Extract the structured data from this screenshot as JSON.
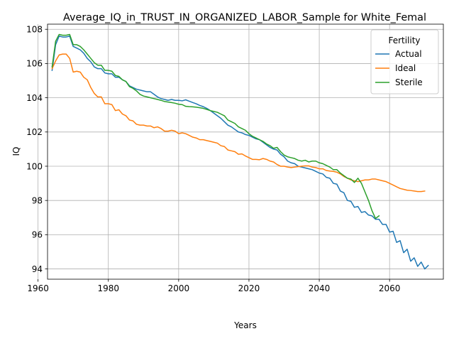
{
  "chart_data": {
    "type": "line",
    "title": "Average_IQ_in_TRUST_IN_ORGANIZED_LABOR_Sample for White_Femal",
    "xlabel": "Years",
    "ylabel": "IQ",
    "xlim": [
      1962.7,
      2075.3
    ],
    "ylim": [
      93.4,
      108.3
    ],
    "x_ticks": [
      1960,
      1980,
      2000,
      2020,
      2040,
      2060
    ],
    "y_ticks": [
      94,
      96,
      98,
      100,
      102,
      104,
      106,
      108
    ],
    "grid": true,
    "legend": {
      "title": "Fertility",
      "position": "top-right"
    },
    "series": [
      {
        "name": "Actual",
        "color": "#1f77b4",
        "points": [
          [
            1964,
            105.6
          ],
          [
            1965,
            107.1
          ],
          [
            1966,
            107.6
          ],
          [
            1967,
            107.55
          ],
          [
            1968,
            107.55
          ],
          [
            1969,
            107.6
          ],
          [
            1970,
            107.0
          ],
          [
            1971,
            106.9
          ],
          [
            1972,
            106.8
          ],
          [
            1973,
            106.6
          ],
          [
            1974,
            106.3
          ],
          [
            1975,
            106.1
          ],
          [
            1976,
            105.8
          ],
          [
            1977,
            105.7
          ],
          [
            1978,
            105.7
          ],
          [
            1979,
            105.45
          ],
          [
            1980,
            105.4
          ],
          [
            1981,
            105.4
          ],
          [
            1982,
            105.2
          ],
          [
            1983,
            105.2
          ],
          [
            1984,
            105.05
          ],
          [
            1985,
            104.95
          ],
          [
            1986,
            104.7
          ],
          [
            1987,
            104.6
          ],
          [
            1988,
            104.5
          ],
          [
            1989,
            104.45
          ],
          [
            1990,
            104.4
          ],
          [
            1991,
            104.35
          ],
          [
            1992,
            104.35
          ],
          [
            1993,
            104.2
          ],
          [
            1994,
            104.05
          ],
          [
            1995,
            103.95
          ],
          [
            1996,
            103.9
          ],
          [
            1997,
            103.85
          ],
          [
            1998,
            103.9
          ],
          [
            1999,
            103.85
          ],
          [
            2000,
            103.85
          ],
          [
            2001,
            103.82
          ],
          [
            2002,
            103.88
          ],
          [
            2003,
            103.8
          ],
          [
            2004,
            103.72
          ],
          [
            2005,
            103.65
          ],
          [
            2006,
            103.55
          ],
          [
            2007,
            103.48
          ],
          [
            2008,
            103.38
          ],
          [
            2009,
            103.25
          ],
          [
            2010,
            103.1
          ],
          [
            2011,
            102.95
          ],
          [
            2012,
            102.8
          ],
          [
            2013,
            102.6
          ],
          [
            2014,
            102.4
          ],
          [
            2015,
            102.3
          ],
          [
            2016,
            102.15
          ],
          [
            2017,
            102.0
          ],
          [
            2018,
            101.95
          ],
          [
            2019,
            101.85
          ],
          [
            2020,
            101.8
          ],
          [
            2021,
            101.7
          ],
          [
            2022,
            101.6
          ],
          [
            2023,
            101.55
          ],
          [
            2024,
            101.4
          ],
          [
            2025,
            101.25
          ],
          [
            2026,
            101.1
          ],
          [
            2027,
            101.0
          ],
          [
            2028,
            100.95
          ],
          [
            2029,
            100.7
          ],
          [
            2030,
            100.55
          ],
          [
            2031,
            100.3
          ],
          [
            2032,
            100.2
          ],
          [
            2033,
            100.15
          ],
          [
            2034,
            100.0
          ],
          [
            2035,
            99.95
          ],
          [
            2036,
            99.9
          ],
          [
            2037,
            99.85
          ],
          [
            2038,
            99.8
          ],
          [
            2039,
            99.7
          ],
          [
            2040,
            99.6
          ],
          [
            2041,
            99.55
          ],
          [
            2042,
            99.35
          ],
          [
            2043,
            99.3
          ],
          [
            2044,
            99.0
          ],
          [
            2045,
            98.95
          ],
          [
            2046,
            98.55
          ],
          [
            2047,
            98.45
          ],
          [
            2048,
            98.0
          ],
          [
            2049,
            97.95
          ],
          [
            2050,
            97.6
          ],
          [
            2051,
            97.65
          ],
          [
            2052,
            97.3
          ],
          [
            2053,
            97.35
          ],
          [
            2054,
            97.15
          ],
          [
            2055,
            97.1
          ],
          [
            2056,
            96.9
          ],
          [
            2057,
            96.9
          ],
          [
            2058,
            96.6
          ],
          [
            2059,
            96.6
          ],
          [
            2060,
            96.15
          ],
          [
            2061,
            96.2
          ],
          [
            2062,
            95.55
          ],
          [
            2063,
            95.65
          ],
          [
            2064,
            94.95
          ],
          [
            2065,
            95.15
          ],
          [
            2066,
            94.45
          ],
          [
            2067,
            94.65
          ],
          [
            2068,
            94.15
          ],
          [
            2069,
            94.4
          ],
          [
            2070,
            94.0
          ],
          [
            2071,
            94.2
          ]
        ]
      },
      {
        "name": "Ideal",
        "color": "#ff7f0e",
        "points": [
          [
            1964,
            105.7
          ],
          [
            1965,
            106.15
          ],
          [
            1966,
            106.5
          ],
          [
            1967,
            106.55
          ],
          [
            1968,
            106.55
          ],
          [
            1969,
            106.3
          ],
          [
            1970,
            105.5
          ],
          [
            1971,
            105.55
          ],
          [
            1972,
            105.5
          ],
          [
            1973,
            105.2
          ],
          [
            1974,
            105.05
          ],
          [
            1975,
            104.6
          ],
          [
            1976,
            104.25
          ],
          [
            1977,
            104.05
          ],
          [
            1978,
            104.05
          ],
          [
            1979,
            103.65
          ],
          [
            1980,
            103.65
          ],
          [
            1981,
            103.6
          ],
          [
            1982,
            103.25
          ],
          [
            1983,
            103.3
          ],
          [
            1984,
            103.05
          ],
          [
            1985,
            102.95
          ],
          [
            1986,
            102.7
          ],
          [
            1987,
            102.65
          ],
          [
            1988,
            102.45
          ],
          [
            1989,
            102.4
          ],
          [
            1990,
            102.4
          ],
          [
            1991,
            102.35
          ],
          [
            1992,
            102.35
          ],
          [
            1993,
            102.25
          ],
          [
            1994,
            102.3
          ],
          [
            1995,
            102.2
          ],
          [
            1996,
            102.05
          ],
          [
            1997,
            102.05
          ],
          [
            1998,
            102.1
          ],
          [
            1999,
            102.05
          ],
          [
            2000,
            101.9
          ],
          [
            2001,
            101.95
          ],
          [
            2002,
            101.9
          ],
          [
            2003,
            101.8
          ],
          [
            2004,
            101.7
          ],
          [
            2005,
            101.65
          ],
          [
            2006,
            101.55
          ],
          [
            2007,
            101.55
          ],
          [
            2008,
            101.5
          ],
          [
            2009,
            101.45
          ],
          [
            2010,
            101.4
          ],
          [
            2011,
            101.35
          ],
          [
            2012,
            101.2
          ],
          [
            2013,
            101.15
          ],
          [
            2014,
            100.95
          ],
          [
            2015,
            100.9
          ],
          [
            2016,
            100.85
          ],
          [
            2017,
            100.7
          ],
          [
            2018,
            100.72
          ],
          [
            2019,
            100.6
          ],
          [
            2020,
            100.5
          ],
          [
            2021,
            100.4
          ],
          [
            2022,
            100.4
          ],
          [
            2023,
            100.38
          ],
          [
            2024,
            100.45
          ],
          [
            2025,
            100.4
          ],
          [
            2026,
            100.3
          ],
          [
            2027,
            100.25
          ],
          [
            2028,
            100.1
          ],
          [
            2029,
            100.0
          ],
          [
            2030,
            100.0
          ],
          [
            2031,
            99.95
          ],
          [
            2032,
            99.92
          ],
          [
            2033,
            99.95
          ],
          [
            2034,
            99.98
          ],
          [
            2035,
            100.0
          ],
          [
            2036,
            100.02
          ],
          [
            2037,
            100.02
          ],
          [
            2038,
            99.95
          ],
          [
            2039,
            99.92
          ],
          [
            2040,
            99.85
          ],
          [
            2041,
            99.85
          ],
          [
            2042,
            99.75
          ],
          [
            2043,
            99.72
          ],
          [
            2044,
            99.7
          ],
          [
            2045,
            99.65
          ],
          [
            2046,
            99.55
          ],
          [
            2047,
            99.4
          ],
          [
            2048,
            99.3
          ],
          [
            2049,
            99.2
          ],
          [
            2050,
            99.15
          ],
          [
            2051,
            99.1
          ],
          [
            2052,
            99.15
          ],
          [
            2053,
            99.2
          ],
          [
            2054,
            99.2
          ],
          [
            2055,
            99.25
          ],
          [
            2056,
            99.25
          ],
          [
            2057,
            99.2
          ],
          [
            2058,
            99.15
          ],
          [
            2059,
            99.1
          ],
          [
            2060,
            99.0
          ],
          [
            2061,
            98.9
          ],
          [
            2062,
            98.8
          ],
          [
            2063,
            98.7
          ],
          [
            2064,
            98.65
          ],
          [
            2065,
            98.6
          ],
          [
            2066,
            98.58
          ],
          [
            2067,
            98.55
          ],
          [
            2068,
            98.52
          ],
          [
            2069,
            98.52
          ],
          [
            2070,
            98.55
          ]
        ]
      },
      {
        "name": "Sterile",
        "color": "#2ca02c",
        "points": [
          [
            1964,
            105.8
          ],
          [
            1965,
            107.3
          ],
          [
            1966,
            107.7
          ],
          [
            1967,
            107.65
          ],
          [
            1968,
            107.65
          ],
          [
            1969,
            107.7
          ],
          [
            1970,
            107.1
          ],
          [
            1971,
            107.1
          ],
          [
            1972,
            107.0
          ],
          [
            1973,
            106.8
          ],
          [
            1974,
            106.55
          ],
          [
            1975,
            106.3
          ],
          [
            1976,
            106.05
          ],
          [
            1977,
            105.9
          ],
          [
            1978,
            105.9
          ],
          [
            1979,
            105.6
          ],
          [
            1980,
            105.6
          ],
          [
            1981,
            105.55
          ],
          [
            1982,
            105.3
          ],
          [
            1983,
            105.25
          ],
          [
            1984,
            105.05
          ],
          [
            1985,
            104.95
          ],
          [
            1986,
            104.65
          ],
          [
            1987,
            104.55
          ],
          [
            1988,
            104.4
          ],
          [
            1989,
            104.2
          ],
          [
            1990,
            104.1
          ],
          [
            1991,
            104.05
          ],
          [
            1992,
            104.0
          ],
          [
            1993,
            103.95
          ],
          [
            1994,
            103.9
          ],
          [
            1995,
            103.85
          ],
          [
            1996,
            103.78
          ],
          [
            1997,
            103.75
          ],
          [
            1998,
            103.72
          ],
          [
            1999,
            103.68
          ],
          [
            2000,
            103.62
          ],
          [
            2001,
            103.6
          ],
          [
            2002,
            103.5
          ],
          [
            2003,
            103.48
          ],
          [
            2004,
            103.47
          ],
          [
            2005,
            103.45
          ],
          [
            2006,
            103.42
          ],
          [
            2007,
            103.38
          ],
          [
            2008,
            103.32
          ],
          [
            2009,
            103.25
          ],
          [
            2010,
            103.2
          ],
          [
            2011,
            103.15
          ],
          [
            2012,
            103.05
          ],
          [
            2013,
            102.95
          ],
          [
            2014,
            102.7
          ],
          [
            2015,
            102.6
          ],
          [
            2016,
            102.5
          ],
          [
            2017,
            102.3
          ],
          [
            2018,
            102.2
          ],
          [
            2019,
            102.1
          ],
          [
            2020,
            101.9
          ],
          [
            2021,
            101.75
          ],
          [
            2022,
            101.65
          ],
          [
            2023,
            101.55
          ],
          [
            2024,
            101.45
          ],
          [
            2025,
            101.3
          ],
          [
            2026,
            101.2
          ],
          [
            2027,
            101.05
          ],
          [
            2028,
            101.1
          ],
          [
            2029,
            100.85
          ],
          [
            2030,
            100.65
          ],
          [
            2031,
            100.55
          ],
          [
            2032,
            100.5
          ],
          [
            2033,
            100.45
          ],
          [
            2034,
            100.35
          ],
          [
            2035,
            100.3
          ],
          [
            2036,
            100.35
          ],
          [
            2037,
            100.25
          ],
          [
            2038,
            100.3
          ],
          [
            2039,
            100.3
          ],
          [
            2040,
            100.2
          ],
          [
            2041,
            100.15
          ],
          [
            2042,
            100.05
          ],
          [
            2043,
            99.95
          ],
          [
            2044,
            99.8
          ],
          [
            2045,
            99.8
          ],
          [
            2046,
            99.6
          ],
          [
            2047,
            99.45
          ],
          [
            2048,
            99.3
          ],
          [
            2049,
            99.25
          ],
          [
            2050,
            99.05
          ],
          [
            2051,
            99.3
          ],
          [
            2052,
            99.0
          ],
          [
            2053,
            98.5
          ],
          [
            2054,
            98.0
          ],
          [
            2055,
            97.4
          ],
          [
            2056,
            96.95
          ],
          [
            2057,
            97.1
          ]
        ]
      }
    ]
  }
}
